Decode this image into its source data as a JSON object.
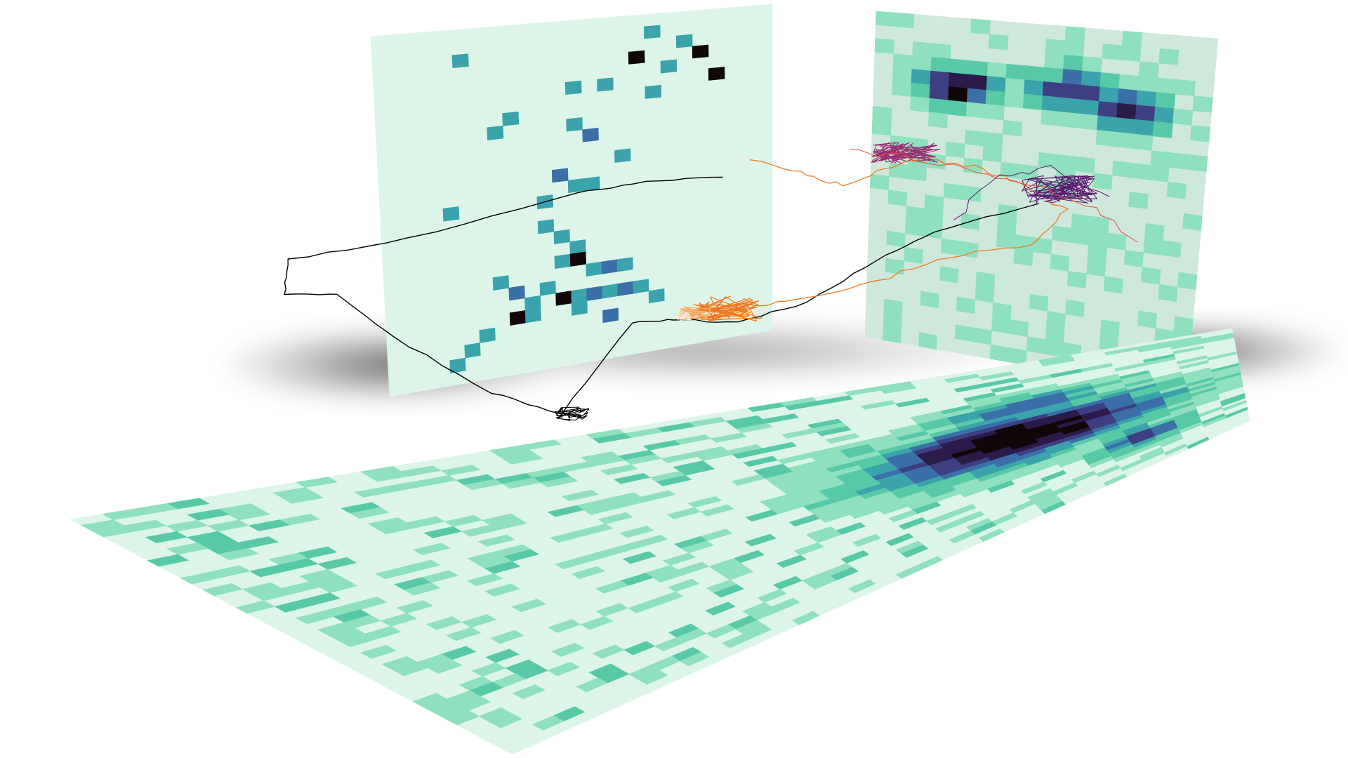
{
  "scene": {
    "kind": "3d-trajectory-heatmap-projections",
    "colormap": [
      "#dcf5e8",
      "#8fe0bf",
      "#58c9a7",
      "#3aa3ab",
      "#3a6fa8",
      "#3e3f80",
      "#2a1b4a",
      "#110608"
    ],
    "walls": [
      "back-left",
      "back-right",
      "floor"
    ],
    "trajectory_colors": [
      "#000000",
      "#5b1a6e",
      "#9a2a72",
      "#e24f3a",
      "#f07a20",
      "#f7b36b",
      "#fde6d2"
    ]
  }
}
